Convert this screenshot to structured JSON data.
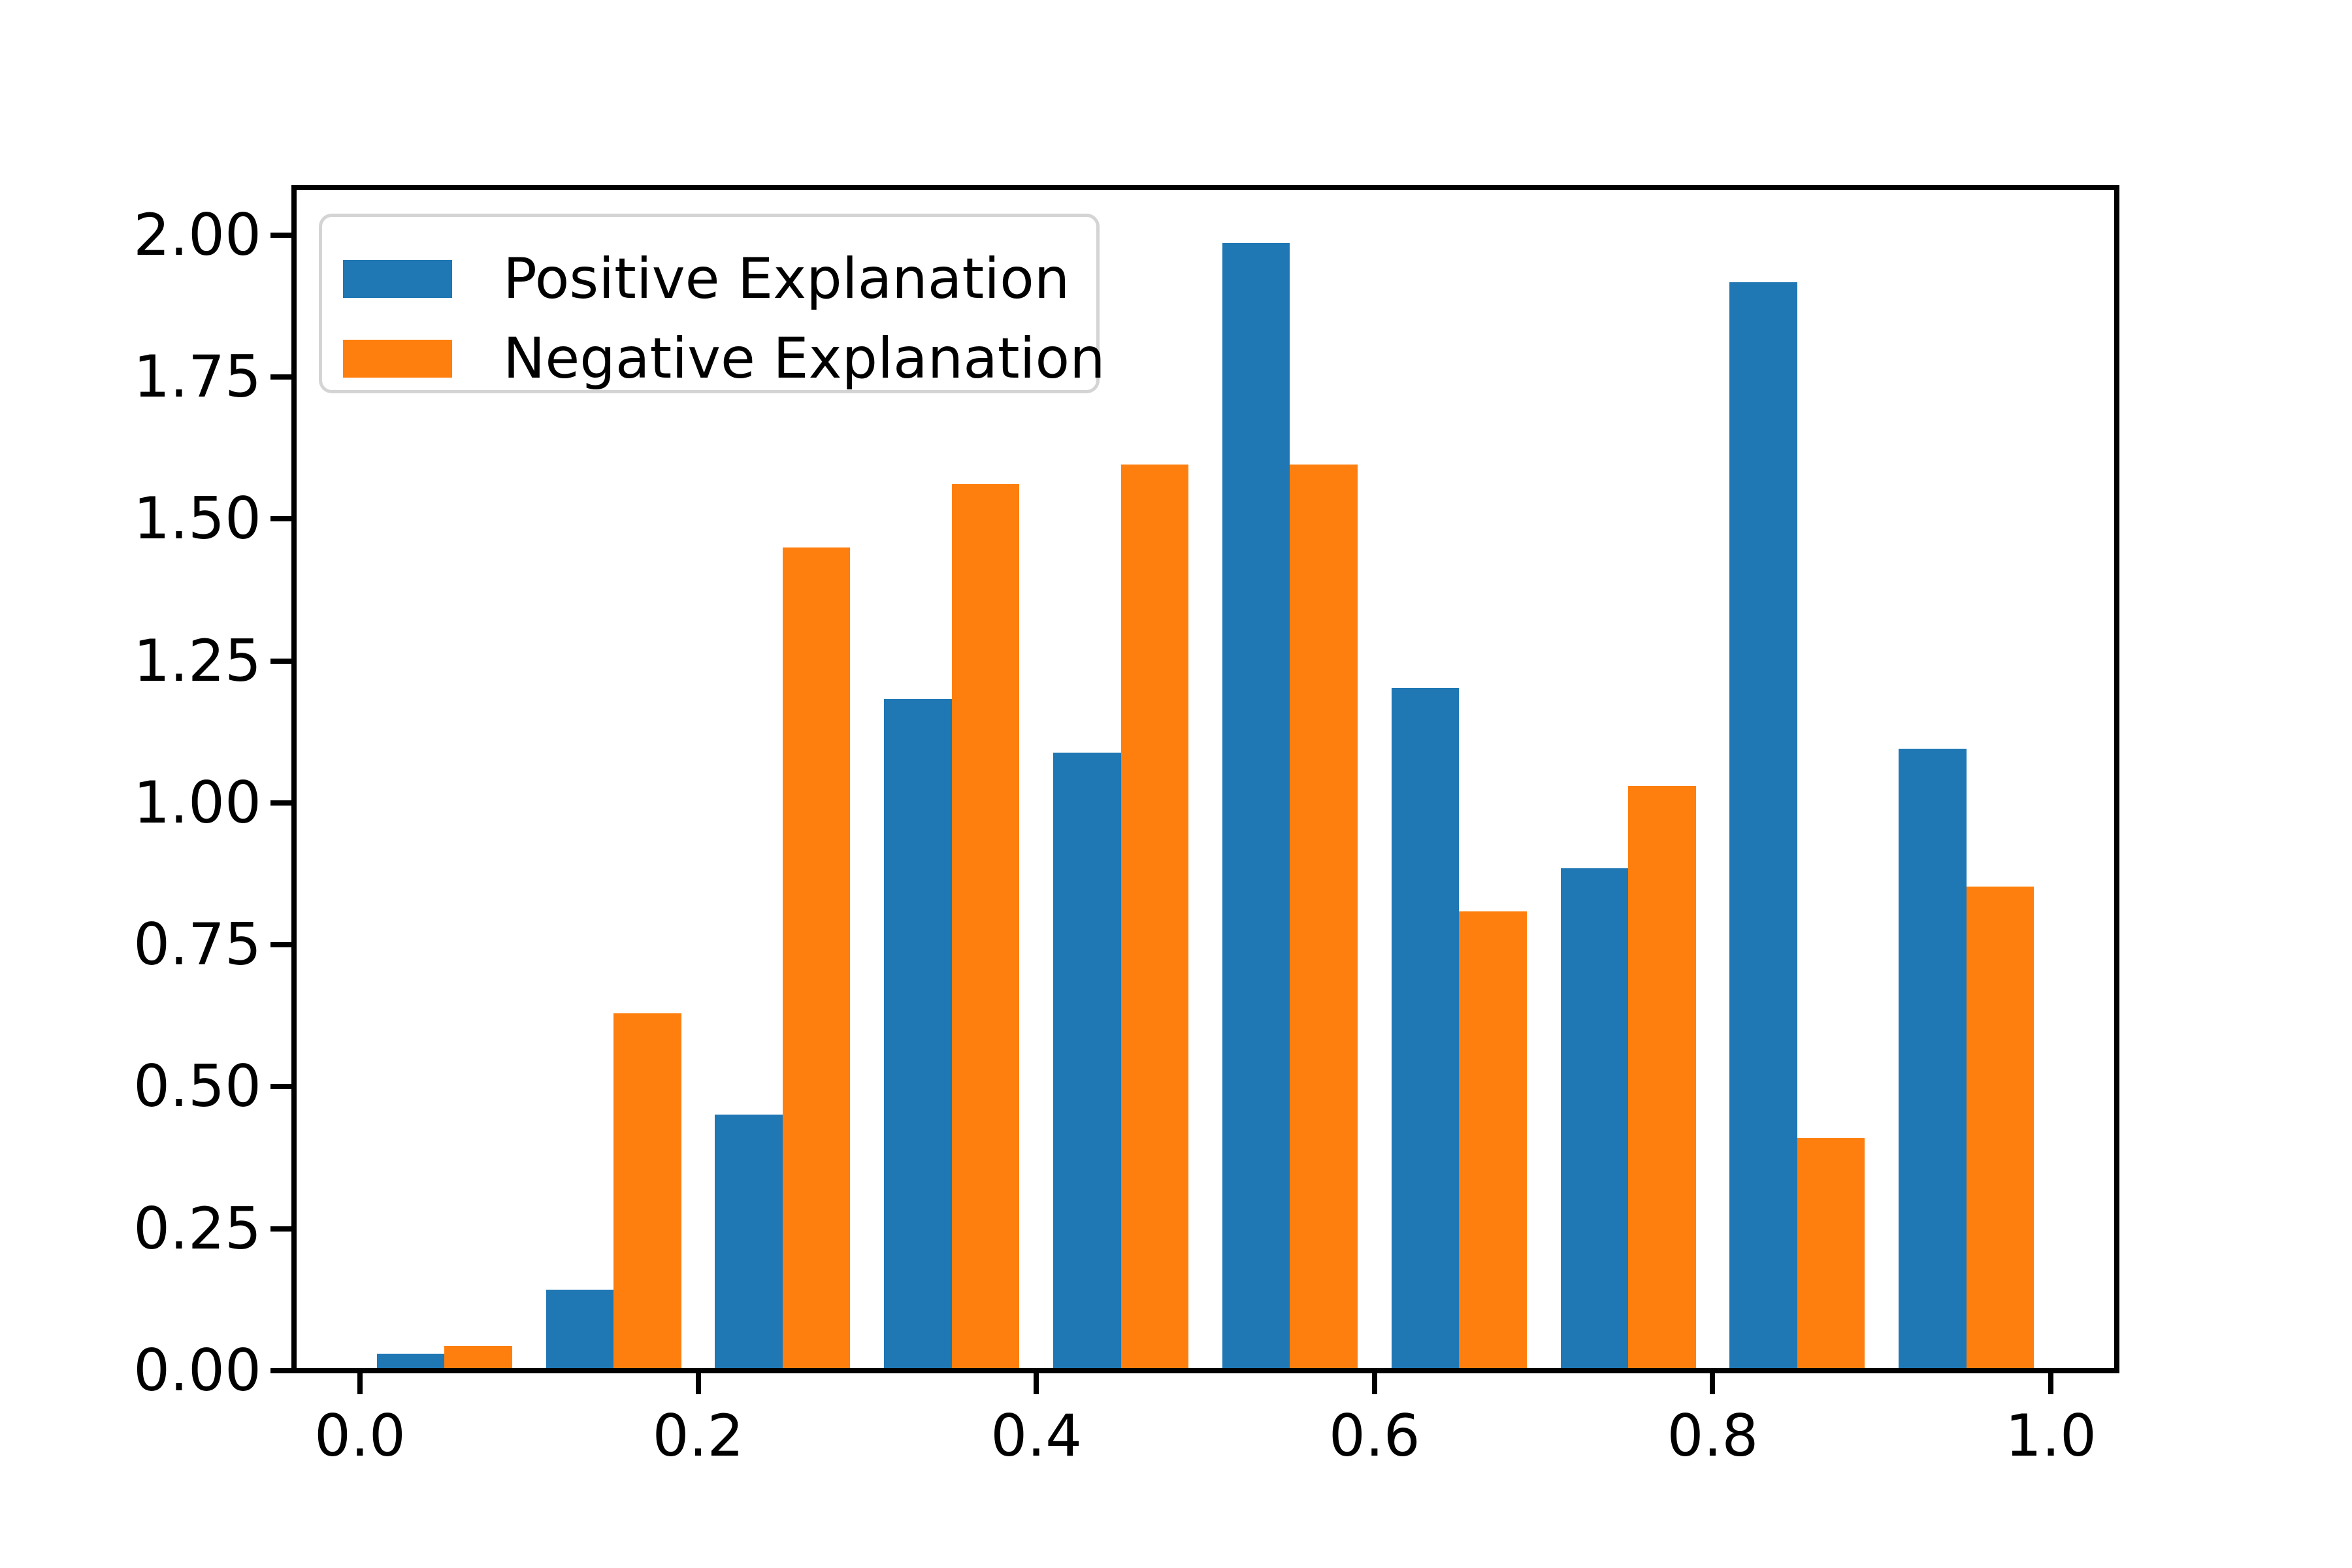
{
  "chart_data": {
    "type": "bar",
    "subtype": "histogram-grouped",
    "title": "",
    "xlabel": "",
    "ylabel": "",
    "bin_edges": [
      0.0,
      0.1,
      0.2,
      0.3,
      0.4,
      0.5,
      0.6,
      0.7,
      0.8,
      0.9,
      1.0
    ],
    "bar_width": 0.04,
    "bar_offsets": [
      0.01,
      0.05
    ],
    "series": [
      {
        "name": "Positive Explanation",
        "color": "#1f77b4",
        "values": [
          0.03,
          0.143,
          0.451,
          1.183,
          1.089,
          1.986,
          1.202,
          0.885,
          1.917,
          1.095
        ]
      },
      {
        "name": "Negative Explanation",
        "color": "#ff7f0e",
        "values": [
          0.044,
          0.63,
          1.45,
          1.562,
          1.596,
          1.596,
          0.809,
          1.03,
          0.41,
          0.853
        ]
      }
    ],
    "x_ticks": [
      "0.0",
      "0.2",
      "0.4",
      "0.6",
      "0.8",
      "1.0"
    ],
    "y_ticks": [
      "0.00",
      "0.25",
      "0.50",
      "0.75",
      "1.00",
      "1.25",
      "1.50",
      "1.75",
      "2.00"
    ],
    "xlim": [
      -0.039,
      1.039
    ],
    "ylim": [
      0,
      2.084
    ],
    "grid": false,
    "legend_position": "upper left",
    "axis_color": "#000000",
    "background_color": "#ffffff"
  }
}
